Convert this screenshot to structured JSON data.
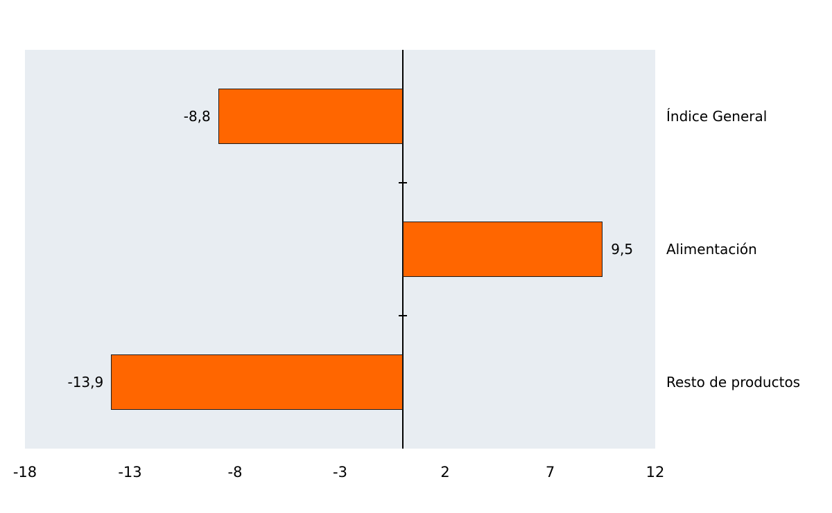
{
  "chart_data": {
    "type": "bar",
    "orientation": "horizontal",
    "title": "",
    "xlabel": "",
    "ylabel": "",
    "categories": [
      "Índice General",
      "Alimentación",
      "Resto de productos"
    ],
    "values": [
      -8.8,
      9.5,
      -13.9
    ],
    "value_labels": [
      "-8,8",
      "9,5",
      "-13,9"
    ],
    "x_ticks": [
      -18,
      -13,
      -8,
      -3,
      2,
      7,
      12
    ],
    "x_tick_labels": [
      "-18",
      "-13",
      "-8",
      "-3",
      "2",
      "7",
      "12"
    ],
    "xlim": [
      -18,
      12
    ],
    "grid": false,
    "legend_position": "none",
    "bar_color": "#FF6600",
    "bar_border_color": "#1A1A1A",
    "plot_bg_color": "#E8EDF2",
    "axis_line_color": "#000000",
    "text_color": "#000000",
    "page_bg_color": "#FFFFFF"
  }
}
